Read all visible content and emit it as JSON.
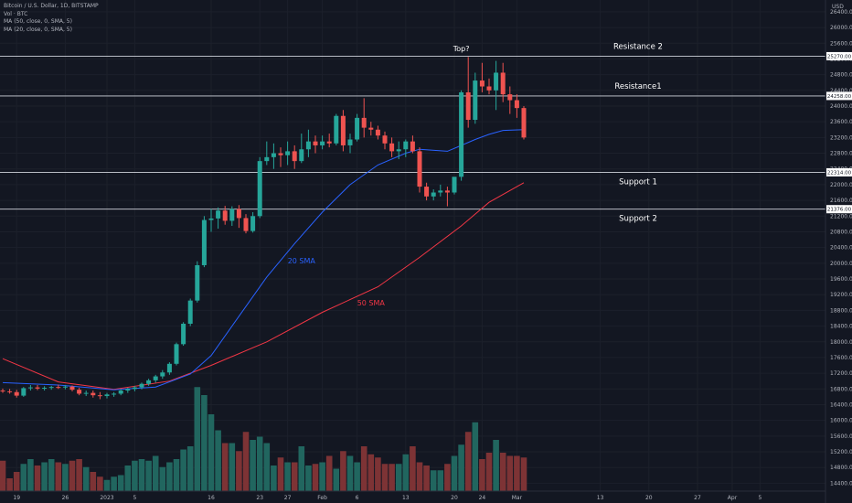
{
  "header": {
    "title": "Bitcoin / U.S. Dollar, 1D, BITSTAMP",
    "indicators": [
      "Vol · BTC",
      "MA (50, close, 0, SMA, 5)",
      "MA (20, close, 0, SMA, 5)"
    ]
  },
  "chart_data": {
    "type": "candlestick",
    "currency": "USD",
    "ylim": [
      14200,
      26700
    ],
    "y_ticks": [
      14400,
      14800,
      15200,
      15600,
      16000,
      16400,
      16800,
      17200,
      17600,
      18000,
      18400,
      18800,
      19200,
      19600,
      20000,
      20400,
      20800,
      21200,
      21600,
      22000,
      22400,
      22800,
      23200,
      23600,
      24000,
      24400,
      24800,
      25200,
      25600,
      26000,
      26400
    ],
    "x_ticks": [
      {
        "i": 2,
        "label": "19"
      },
      {
        "i": 9,
        "label": "26"
      },
      {
        "i": 15,
        "label": "2023"
      },
      {
        "i": 19,
        "label": "5"
      },
      {
        "i": 30,
        "label": "16"
      },
      {
        "i": 37,
        "label": "23"
      },
      {
        "i": 41,
        "label": "27"
      },
      {
        "i": 46,
        "label": "Feb"
      },
      {
        "i": 51,
        "label": "6"
      },
      {
        "i": 58,
        "label": "13"
      },
      {
        "i": 65,
        "label": "20"
      },
      {
        "i": 69,
        "label": "24"
      },
      {
        "i": 74,
        "label": "Mar"
      },
      {
        "i": 86,
        "label": "13"
      },
      {
        "i": 93,
        "label": "20"
      },
      {
        "i": 100,
        "label": "27"
      },
      {
        "i": 105,
        "label": "Apr"
      },
      {
        "i": 109,
        "label": "5"
      }
    ],
    "candles": [
      {
        "o": 16760,
        "h": 16810,
        "l": 16700,
        "c": 16740
      },
      {
        "o": 16740,
        "h": 16800,
        "l": 16680,
        "c": 16720
      },
      {
        "o": 16720,
        "h": 16780,
        "l": 16580,
        "c": 16630
      },
      {
        "o": 16630,
        "h": 16850,
        "l": 16600,
        "c": 16820
      },
      {
        "o": 16820,
        "h": 16900,
        "l": 16760,
        "c": 16840
      },
      {
        "o": 16840,
        "h": 16900,
        "l": 16770,
        "c": 16810
      },
      {
        "o": 16810,
        "h": 16870,
        "l": 16760,
        "c": 16830
      },
      {
        "o": 16830,
        "h": 16880,
        "l": 16780,
        "c": 16850
      },
      {
        "o": 16850,
        "h": 16910,
        "l": 16800,
        "c": 16840
      },
      {
        "o": 16840,
        "h": 16900,
        "l": 16790,
        "c": 16860
      },
      {
        "o": 16860,
        "h": 16890,
        "l": 16740,
        "c": 16780
      },
      {
        "o": 16780,
        "h": 16830,
        "l": 16640,
        "c": 16680
      },
      {
        "o": 16680,
        "h": 16760,
        "l": 16620,
        "c": 16700
      },
      {
        "o": 16700,
        "h": 16760,
        "l": 16580,
        "c": 16640
      },
      {
        "o": 16640,
        "h": 16720,
        "l": 16540,
        "c": 16620
      },
      {
        "o": 16620,
        "h": 16700,
        "l": 16560,
        "c": 16660
      },
      {
        "o": 16660,
        "h": 16720,
        "l": 16600,
        "c": 16680
      },
      {
        "o": 16680,
        "h": 16800,
        "l": 16640,
        "c": 16760
      },
      {
        "o": 16760,
        "h": 16830,
        "l": 16700,
        "c": 16800
      },
      {
        "o": 16800,
        "h": 16880,
        "l": 16740,
        "c": 16840
      },
      {
        "o": 16840,
        "h": 16960,
        "l": 16790,
        "c": 16930
      },
      {
        "o": 16930,
        "h": 17060,
        "l": 16880,
        "c": 17020
      },
      {
        "o": 17020,
        "h": 17160,
        "l": 16960,
        "c": 17120
      },
      {
        "o": 17120,
        "h": 17280,
        "l": 17060,
        "c": 17220
      },
      {
        "o": 17220,
        "h": 17480,
        "l": 17160,
        "c": 17440
      },
      {
        "o": 17440,
        "h": 17980,
        "l": 17400,
        "c": 17940
      },
      {
        "o": 17940,
        "h": 18500,
        "l": 17900,
        "c": 18460
      },
      {
        "o": 18460,
        "h": 19100,
        "l": 18400,
        "c": 19050
      },
      {
        "o": 19050,
        "h": 20050,
        "l": 19000,
        "c": 19950
      },
      {
        "o": 19950,
        "h": 21200,
        "l": 19900,
        "c": 21100
      },
      {
        "o": 21100,
        "h": 21380,
        "l": 20800,
        "c": 21140
      },
      {
        "o": 21140,
        "h": 21420,
        "l": 20880,
        "c": 21340
      },
      {
        "o": 21340,
        "h": 21460,
        "l": 20980,
        "c": 21080
      },
      {
        "o": 21080,
        "h": 21450,
        "l": 20950,
        "c": 21380
      },
      {
        "o": 21380,
        "h": 21480,
        "l": 20900,
        "c": 21150
      },
      {
        "o": 21150,
        "h": 21250,
        "l": 20760,
        "c": 20820
      },
      {
        "o": 20820,
        "h": 21300,
        "l": 20780,
        "c": 21200
      },
      {
        "o": 21200,
        "h": 22700,
        "l": 21150,
        "c": 22600
      },
      {
        "o": 22600,
        "h": 23100,
        "l": 22500,
        "c": 22700
      },
      {
        "o": 22700,
        "h": 23050,
        "l": 22400,
        "c": 22800
      },
      {
        "o": 22800,
        "h": 22950,
        "l": 22450,
        "c": 22750
      },
      {
        "o": 22750,
        "h": 23100,
        "l": 22500,
        "c": 22850
      },
      {
        "o": 22850,
        "h": 23000,
        "l": 22400,
        "c": 22600
      },
      {
        "o": 22600,
        "h": 23300,
        "l": 22550,
        "c": 22900
      },
      {
        "o": 22900,
        "h": 23400,
        "l": 22700,
        "c": 23100
      },
      {
        "o": 23100,
        "h": 23250,
        "l": 22800,
        "c": 23000
      },
      {
        "o": 23000,
        "h": 23250,
        "l": 22900,
        "c": 23100
      },
      {
        "o": 23100,
        "h": 23300,
        "l": 22950,
        "c": 23050
      },
      {
        "o": 23050,
        "h": 23800,
        "l": 23000,
        "c": 23750
      },
      {
        "o": 23750,
        "h": 23900,
        "l": 22850,
        "c": 23000
      },
      {
        "o": 23000,
        "h": 23300,
        "l": 22800,
        "c": 23150
      },
      {
        "o": 23150,
        "h": 23800,
        "l": 23100,
        "c": 23700
      },
      {
        "o": 23700,
        "h": 24200,
        "l": 23200,
        "c": 23450
      },
      {
        "o": 23450,
        "h": 23600,
        "l": 23250,
        "c": 23400
      },
      {
        "o": 23400,
        "h": 23500,
        "l": 23150,
        "c": 23250
      },
      {
        "o": 23250,
        "h": 23350,
        "l": 22900,
        "c": 23050
      },
      {
        "o": 23050,
        "h": 23200,
        "l": 22700,
        "c": 22850
      },
      {
        "o": 22850,
        "h": 23100,
        "l": 22650,
        "c": 22900
      },
      {
        "o": 22900,
        "h": 23150,
        "l": 22700,
        "c": 23100
      },
      {
        "o": 23100,
        "h": 23250,
        "l": 22800,
        "c": 22850
      },
      {
        "o": 22850,
        "h": 22950,
        "l": 21800,
        "c": 21950
      },
      {
        "o": 21950,
        "h": 22050,
        "l": 21600,
        "c": 21700
      },
      {
        "o": 21700,
        "h": 21880,
        "l": 21600,
        "c": 21800
      },
      {
        "o": 21800,
        "h": 22000,
        "l": 21700,
        "c": 21850
      },
      {
        "o": 21850,
        "h": 21950,
        "l": 21450,
        "c": 21800
      },
      {
        "o": 21800,
        "h": 22100,
        "l": 21750,
        "c": 22200
      },
      {
        "o": 22200,
        "h": 24400,
        "l": 22100,
        "c": 24350
      },
      {
        "o": 24350,
        "h": 25250,
        "l": 23450,
        "c": 23650
      },
      {
        "o": 23650,
        "h": 24850,
        "l": 23550,
        "c": 24650
      },
      {
        "o": 24650,
        "h": 25100,
        "l": 24350,
        "c": 24500
      },
      {
        "o": 24500,
        "h": 24700,
        "l": 24300,
        "c": 24400
      },
      {
        "o": 24400,
        "h": 25150,
        "l": 23900,
        "c": 24850
      },
      {
        "o": 24850,
        "h": 25100,
        "l": 24100,
        "c": 24300
      },
      {
        "o": 24300,
        "h": 24500,
        "l": 23800,
        "c": 24150
      },
      {
        "o": 24150,
        "h": 24300,
        "l": 23700,
        "c": 23950
      },
      {
        "o": 23950,
        "h": 24000,
        "l": 23150,
        "c": 23200
      }
    ],
    "volumes": [
      0.19,
      0.08,
      0.12,
      0.17,
      0.2,
      0.16,
      0.18,
      0.2,
      0.18,
      0.17,
      0.19,
      0.2,
      0.15,
      0.12,
      0.09,
      0.07,
      0.09,
      0.1,
      0.16,
      0.19,
      0.2,
      0.19,
      0.22,
      0.15,
      0.18,
      0.2,
      0.26,
      0.28,
      0.65,
      0.6,
      0.48,
      0.38,
      0.3,
      0.3,
      0.25,
      0.37,
      0.32,
      0.34,
      0.3,
      0.16,
      0.21,
      0.18,
      0.18,
      0.28,
      0.16,
      0.17,
      0.18,
      0.22,
      0.14,
      0.25,
      0.22,
      0.18,
      0.28,
      0.23,
      0.21,
      0.17,
      0.17,
      0.17,
      0.23,
      0.28,
      0.18,
      0.16,
      0.13,
      0.13,
      0.17,
      0.22,
      0.29,
      0.37,
      0.43,
      0.2,
      0.24,
      0.32,
      0.24,
      0.22,
      0.22,
      0.21
    ],
    "sma_20": [
      [
        0,
        16960
      ],
      [
        8,
        16900
      ],
      [
        16,
        16780
      ],
      [
        22,
        16850
      ],
      [
        27,
        17180
      ],
      [
        30,
        17650
      ],
      [
        34,
        18650
      ],
      [
        38,
        19650
      ],
      [
        42,
        20500
      ],
      [
        46,
        21300
      ],
      [
        50,
        22000
      ],
      [
        54,
        22500
      ],
      [
        58,
        22800
      ],
      [
        60,
        22900
      ],
      [
        64,
        22850
      ],
      [
        66,
        23000
      ],
      [
        68,
        23150
      ],
      [
        70,
        23280
      ],
      [
        72,
        23380
      ],
      [
        75,
        23400
      ]
    ],
    "sma_50": [
      [
        0,
        17570
      ],
      [
        8,
        16980
      ],
      [
        16,
        16790
      ],
      [
        24,
        17000
      ],
      [
        30,
        17400
      ],
      [
        38,
        18000
      ],
      [
        46,
        18750
      ],
      [
        54,
        19400
      ],
      [
        60,
        20150
      ],
      [
        66,
        20950
      ],
      [
        70,
        21550
      ],
      [
        75,
        22050
      ]
    ],
    "levels": [
      {
        "name": "Resistance 2",
        "price": 25270,
        "tag": "25270.00"
      },
      {
        "name": "Resistance1",
        "price": 24258,
        "tag": "24258.00"
      },
      {
        "name": "Support 1",
        "price": 22314,
        "tag": "22314.00"
      },
      {
        "name": "Support 2",
        "price": 21376,
        "tag": "21376.00"
      }
    ],
    "annotations": [
      {
        "text": "Top?",
        "i": 66,
        "price": 25400,
        "color": "#ffffff"
      },
      {
        "text": "20 SMA",
        "i": 43,
        "price": 20000,
        "color": "#2962ff"
      },
      {
        "text": "50 SMA",
        "i": 53,
        "price": 18930,
        "color": "#f23645"
      }
    ],
    "colors": {
      "up": "#26a69a",
      "down": "#ef5350",
      "up_volume": "#21665f",
      "down_volume": "#7d3335",
      "sma_20": "#2962ff",
      "sma_50": "#f23645",
      "background": "#131722"
    }
  }
}
